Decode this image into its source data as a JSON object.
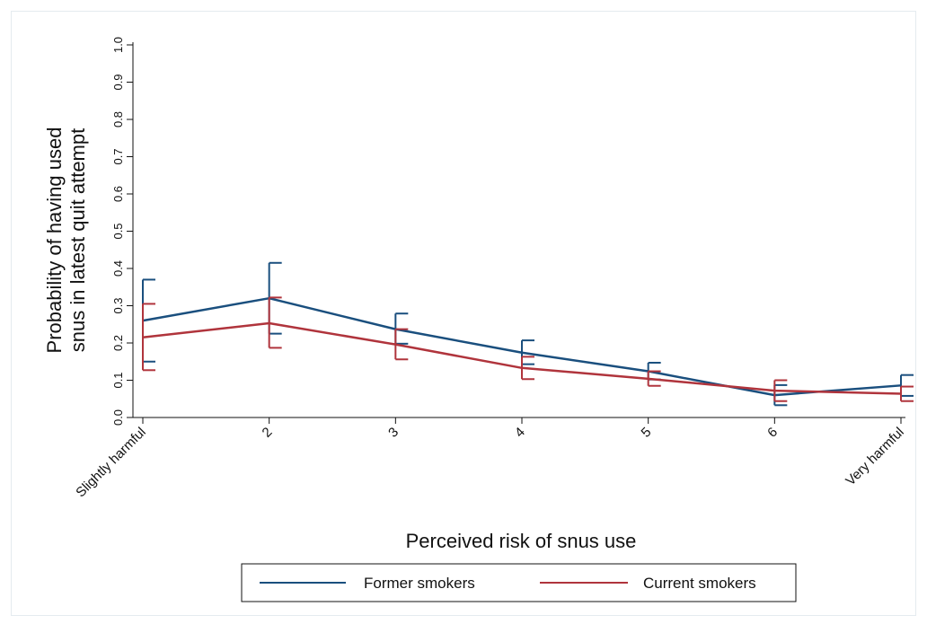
{
  "chart_data": {
    "type": "line",
    "title": "",
    "xlabel": "Perceived risk of snus use",
    "ylabel_lines": [
      "Probability of having used",
      "snus in latest quit attempt"
    ],
    "categories": [
      "Slightly harmful",
      "2",
      "3",
      "4",
      "5",
      "6",
      "Very harmful"
    ],
    "ylim": [
      0,
      1
    ],
    "yticks": [
      "0.0",
      "0.1",
      "0.2",
      "0.3",
      "0.4",
      "0.5",
      "0.6",
      "0.7",
      "0.8",
      "0.9",
      "1.0"
    ],
    "grid": false,
    "legend_position": "bottom",
    "series": [
      {
        "name": "Former smokers",
        "color": "#1a4f7e",
        "values": [
          0.26,
          0.32,
          0.237,
          0.174,
          0.124,
          0.06,
          0.086
        ],
        "ci_low": [
          0.15,
          0.225,
          0.198,
          0.143,
          0.102,
          0.033,
          0.058
        ],
        "ci_high": [
          0.37,
          0.415,
          0.279,
          0.207,
          0.147,
          0.087,
          0.114
        ]
      },
      {
        "name": "Current smokers",
        "color": "#b0343c",
        "values": [
          0.215,
          0.253,
          0.196,
          0.133,
          0.104,
          0.072,
          0.064
        ],
        "ci_low": [
          0.127,
          0.187,
          0.156,
          0.103,
          0.085,
          0.044,
          0.044
        ],
        "ci_high": [
          0.305,
          0.322,
          0.237,
          0.163,
          0.124,
          0.1,
          0.083
        ]
      }
    ]
  }
}
